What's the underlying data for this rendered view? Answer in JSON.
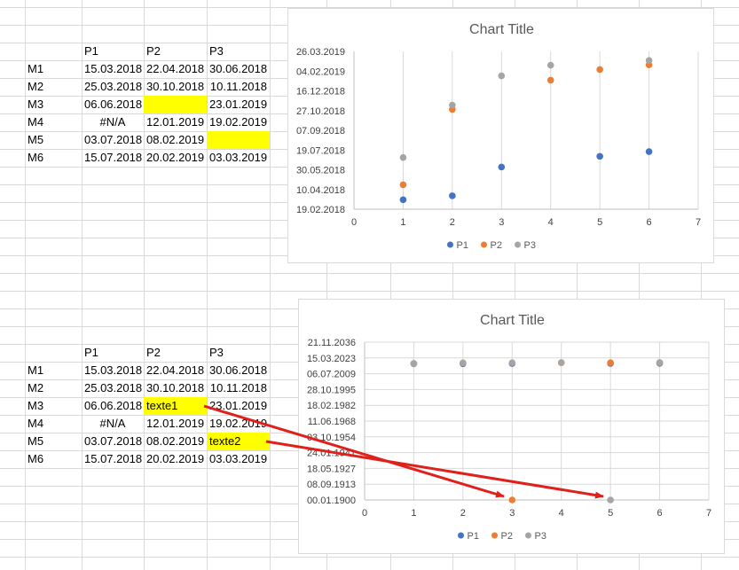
{
  "tables": [
    {
      "headers": [
        "P1",
        "P2",
        "P3"
      ],
      "rows": [
        {
          "label": "M1",
          "p1": "15.03.2018",
          "p2": "22.04.2018",
          "p3": "30.06.2018"
        },
        {
          "label": "M2",
          "p1": "25.03.2018",
          "p2": "30.10.2018",
          "p3": "10.11.2018"
        },
        {
          "label": "M3",
          "p1": "06.06.2018",
          "p2": "",
          "p3": "23.01.2019"
        },
        {
          "label": "M4",
          "p1": "#N/A",
          "p2": "12.01.2019",
          "p3": "19.02.2019"
        },
        {
          "label": "M5",
          "p1": "03.07.2018",
          "p2": "08.02.2019",
          "p3": ""
        },
        {
          "label": "M6",
          "p1": "15.07.2018",
          "p2": "20.02.2019",
          "p3": "03.03.2019"
        }
      ],
      "highlighted": [
        "2.p2",
        "4.p3"
      ]
    },
    {
      "headers": [
        "P1",
        "P2",
        "P3"
      ],
      "rows": [
        {
          "label": "M1",
          "p1": "15.03.2018",
          "p2": "22.04.2018",
          "p3": "30.06.2018"
        },
        {
          "label": "M2",
          "p1": "25.03.2018",
          "p2": "30.10.2018",
          "p3": "10.11.2018"
        },
        {
          "label": "M3",
          "p1": "06.06.2018",
          "p2": "texte1",
          "p3": "23.01.2019"
        },
        {
          "label": "M4",
          "p1": "#N/A",
          "p2": "12.01.2019",
          "p3": "19.02.2019"
        },
        {
          "label": "M5",
          "p1": "03.07.2018",
          "p2": "08.02.2019",
          "p3": "texte2"
        },
        {
          "label": "M6",
          "p1": "15.07.2018",
          "p2": "20.02.2019",
          "p3": "03.03.2019"
        }
      ],
      "highlighted": [
        "2.p2",
        "4.p3"
      ]
    }
  ],
  "colors": {
    "p1": "#4472c4",
    "p2": "#ed7d31",
    "p3": "#a5a5a5",
    "highlight": "#ffff00",
    "arrow": "#e0201b",
    "gridline": "#d9d9d9",
    "axis_text": "#595959"
  },
  "chart_data": [
    {
      "type": "scatter",
      "title": "Chart Title",
      "xlim": [
        0,
        7
      ],
      "x_ticks": [
        "0",
        "1",
        "2",
        "3",
        "4",
        "5",
        "6",
        "7"
      ],
      "y_ticks": [
        "19.02.2018",
        "10.04.2018",
        "30.05.2018",
        "19.07.2018",
        "07.09.2018",
        "27.10.2018",
        "16.12.2018",
        "04.02.2019",
        "26.03.2019"
      ],
      "ylim": [
        "19.02.2018",
        "26.03.2019"
      ],
      "legend_position": "bottom",
      "grid": "vertical",
      "series": [
        {
          "name": "P1",
          "points": [
            {
              "x": 1,
              "y": "15.03.2018"
            },
            {
              "x": 2,
              "y": "25.03.2018"
            },
            {
              "x": 3,
              "y": "06.06.2018"
            },
            {
              "x": 5,
              "y": "03.07.2018"
            },
            {
              "x": 6,
              "y": "15.07.2018"
            }
          ]
        },
        {
          "name": "P2",
          "points": [
            {
              "x": 1,
              "y": "22.04.2018"
            },
            {
              "x": 2,
              "y": "30.10.2018"
            },
            {
              "x": 4,
              "y": "12.01.2019"
            },
            {
              "x": 5,
              "y": "08.02.2019"
            },
            {
              "x": 6,
              "y": "20.02.2019"
            }
          ]
        },
        {
          "name": "P3",
          "points": [
            {
              "x": 1,
              "y": "30.06.2018"
            },
            {
              "x": 2,
              "y": "10.11.2018"
            },
            {
              "x": 3,
              "y": "23.01.2019"
            },
            {
              "x": 4,
              "y": "19.02.2019"
            },
            {
              "x": 6,
              "y": "03.03.2019"
            }
          ]
        }
      ]
    },
    {
      "type": "scatter",
      "title": "Chart Title",
      "xlim": [
        0,
        7
      ],
      "x_ticks": [
        "0",
        "1",
        "2",
        "3",
        "4",
        "5",
        "6",
        "7"
      ],
      "y_ticks": [
        "00.01.1900",
        "08.09.1913",
        "18.05.1927",
        "24.01.1941",
        "03.10.1954",
        "11.06.1968",
        "18.02.1982",
        "28.10.1995",
        "06.07.2009",
        "15.03.2023",
        "21.11.2036"
      ],
      "ylim": [
        "00.01.1900",
        "21.11.2036"
      ],
      "legend_position": "bottom",
      "grid": "both",
      "series": [
        {
          "name": "P1",
          "points": [
            {
              "x": 1,
              "y": "15.03.2018"
            },
            {
              "x": 2,
              "y": "25.03.2018"
            },
            {
              "x": 3,
              "y": "06.06.2018"
            },
            {
              "x": 5,
              "y": "03.07.2018"
            },
            {
              "x": 6,
              "y": "15.07.2018"
            }
          ]
        },
        {
          "name": "P2",
          "points": [
            {
              "x": 1,
              "y": "22.04.2018"
            },
            {
              "x": 2,
              "y": "30.10.2018"
            },
            {
              "x": 3,
              "y": "00.01.1900"
            },
            {
              "x": 4,
              "y": "12.01.2019"
            },
            {
              "x": 5,
              "y": "08.02.2019"
            },
            {
              "x": 6,
              "y": "20.02.2019"
            }
          ]
        },
        {
          "name": "P3",
          "points": [
            {
              "x": 1,
              "y": "30.06.2018"
            },
            {
              "x": 2,
              "y": "10.11.2018"
            },
            {
              "x": 3,
              "y": "23.01.2019"
            },
            {
              "x": 4,
              "y": "19.02.2019"
            },
            {
              "x": 5,
              "y": "00.01.1900"
            },
            {
              "x": 6,
              "y": "03.03.2019"
            }
          ]
        }
      ]
    }
  ]
}
